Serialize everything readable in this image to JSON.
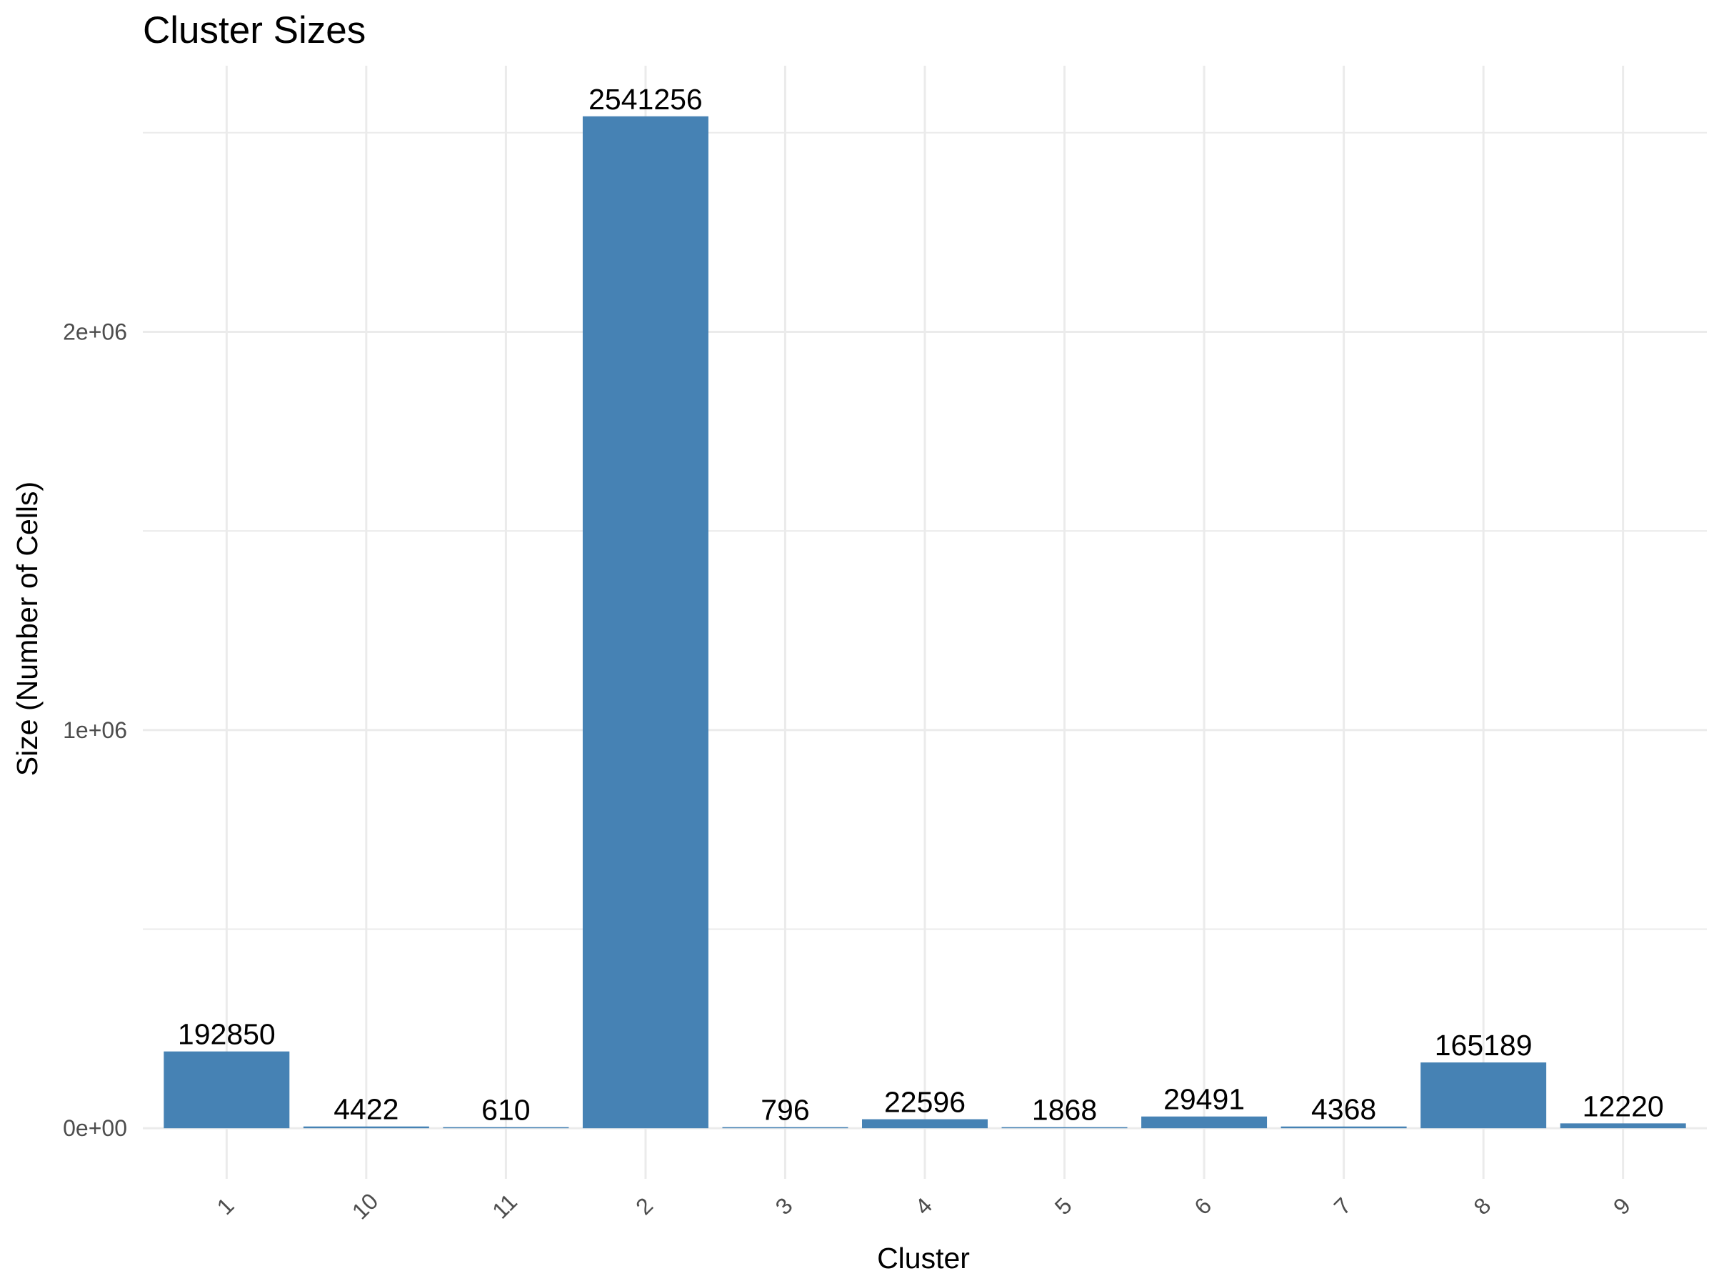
{
  "chart_data": {
    "type": "bar",
    "title": "Cluster Sizes",
    "xlabel": "Cluster",
    "ylabel": "Size (Number of Cells)",
    "categories": [
      "1",
      "10",
      "11",
      "2",
      "3",
      "4",
      "5",
      "6",
      "7",
      "8",
      "9"
    ],
    "values": [
      192850,
      4422,
      610,
      2541256,
      796,
      22596,
      1868,
      29491,
      4368,
      165189,
      12220
    ],
    "data_labels": [
      "192850",
      "4422",
      "610",
      "2541256",
      "796",
      "22596",
      "1868",
      "29491",
      "4368",
      "165189",
      "12220"
    ],
    "y_ticks": [
      0,
      1000000,
      2000000
    ],
    "y_tick_labels": [
      "0e+00",
      "1e+06",
      "2e+06"
    ],
    "y_minor_ticks": [
      500000,
      1500000,
      2500000
    ],
    "ylim": [
      -127063,
      2668319
    ],
    "grid": true,
    "x_tick_rotation_deg": 45,
    "bar_color": "#4682B4",
    "grid_color": "#ebebeb"
  }
}
